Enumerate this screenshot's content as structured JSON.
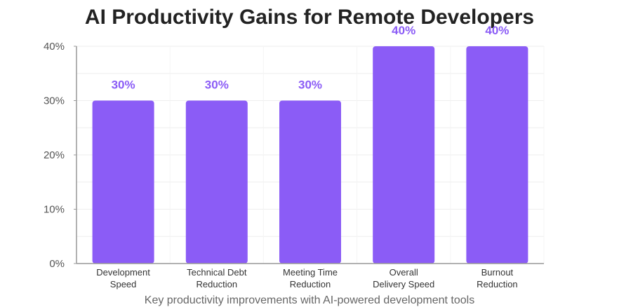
{
  "chart_data": {
    "type": "bar",
    "title": "AI Productivity Gains for Remote Developers",
    "subtitle": "Key productivity improvements with AI-powered development tools",
    "categories": [
      [
        "Development",
        "Speed"
      ],
      [
        "Technical Debt",
        "Reduction"
      ],
      [
        "Meeting Time",
        "Reduction"
      ],
      [
        "Overall",
        "Delivery Speed"
      ],
      [
        "Burnout",
        "Reduction"
      ]
    ],
    "values": [
      30,
      30,
      30,
      40,
      40
    ],
    "data_labels": [
      "30%",
      "30%",
      "30%",
      "40%",
      "40%"
    ],
    "y_ticks": [
      {
        "value": 0,
        "label": "0%"
      },
      {
        "value": 10,
        "label": "10%"
      },
      {
        "value": 20,
        "label": "20%"
      },
      {
        "value": 30,
        "label": "30%"
      },
      {
        "value": 40,
        "label": "40%"
      }
    ],
    "ylim": [
      0,
      40
    ],
    "grid": true,
    "colors": {
      "bar": "#8b5cf6",
      "data_label": "#8b5cf6",
      "grid": "#eeeeee",
      "axis": "#999999"
    }
  }
}
